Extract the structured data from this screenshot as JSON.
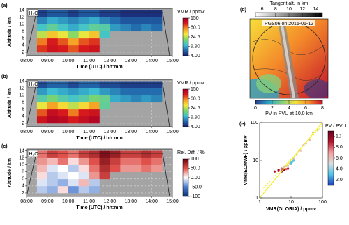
{
  "chart_data": [
    {
      "type": "heatmap",
      "panel_label": "(a)",
      "annotation": "H₂O",
      "xlabel": "Time (UTC) / hh:mm",
      "ylabel": "Altitude / km",
      "xlim": [
        8,
        15
      ],
      "ylim": [
        1,
        14.5
      ],
      "xticks": [
        {
          "value": 8,
          "label": "08:00"
        },
        {
          "value": 9,
          "label": "09:00"
        },
        {
          "value": 10,
          "label": "10:00"
        },
        {
          "value": 11,
          "label": "11:00"
        },
        {
          "value": 12,
          "label": "12:00"
        },
        {
          "value": 13,
          "label": "13:00"
        },
        {
          "value": 14,
          "label": "14:00"
        },
        {
          "value": 15,
          "label": "15:00"
        }
      ],
      "yticks": [
        2,
        4,
        6,
        8,
        10,
        12,
        14
      ],
      "grid": true,
      "x": [
        8.75,
        9.25,
        9.75,
        10.25,
        10.75,
        11.25,
        11.75,
        12.25,
        12.75,
        13.25,
        13.75,
        14.25
      ],
      "y": [
        3,
        5,
        7,
        9,
        11,
        13
      ],
      "z": [
        [
          80,
          100,
          90,
          70,
          90,
          100,
          null,
          null,
          null,
          null,
          null,
          null
        ],
        [
          60,
          90,
          70,
          50,
          70,
          80,
          null,
          null,
          null,
          null,
          null,
          null
        ],
        [
          25,
          40,
          30,
          20,
          30,
          40,
          12,
          null,
          null,
          null,
          null,
          null
        ],
        [
          12,
          15,
          12,
          10,
          12,
          15,
          14,
          9,
          8,
          7,
          8,
          7
        ],
        [
          8,
          10,
          9,
          8,
          9,
          10,
          8,
          7,
          6,
          6,
          6,
          6
        ],
        [
          5,
          6,
          6,
          5,
          6,
          6,
          5,
          5,
          4.5,
          4.5,
          4.5,
          4.5
        ]
      ],
      "colorbar": {
        "title": "VMR / ppmv",
        "lim": [
          4,
          150
        ],
        "log": true,
        "ticks": [
          150,
          {
            "value": 60,
            "label": "60.0"
          },
          24.5,
          {
            "value": 9.9,
            "label": "9.90"
          },
          {
            "value": 4,
            "label": "4.00"
          }
        ],
        "colors": [
          "#1a1f6e",
          "#2166ac",
          "#3ec1d3",
          "#7dd66a",
          "#f5e83a",
          "#f59a23",
          "#d7191c",
          "#a50026"
        ]
      }
    },
    {
      "type": "heatmap",
      "panel_label": "(b)",
      "annotation": "H₂O",
      "xlabel": "Time (UTC) / hh:mm",
      "ylabel": "Altitude / km",
      "xlim": [
        8,
        15
      ],
      "ylim": [
        1,
        14.5
      ],
      "xticks": [
        {
          "value": 8,
          "label": "08:00"
        },
        {
          "value": 9,
          "label": "09:00"
        },
        {
          "value": 10,
          "label": "10:00"
        },
        {
          "value": 11,
          "label": "11:00"
        },
        {
          "value": 12,
          "label": "12:00"
        },
        {
          "value": 13,
          "label": "13:00"
        },
        {
          "value": 14,
          "label": "14:00"
        },
        {
          "value": 15,
          "label": "15:00"
        }
      ],
      "yticks": [
        2,
        4,
        6,
        8,
        10,
        12,
        14
      ],
      "grid": true,
      "x": [
        8.75,
        9.25,
        9.75,
        10.25,
        10.75,
        11.25,
        11.75,
        12.25,
        12.75,
        13.25,
        13.75,
        14.25
      ],
      "y": [
        3,
        5,
        7,
        9,
        11,
        13
      ],
      "z": [
        [
          100,
          130,
          120,
          90,
          110,
          130,
          null,
          null,
          null,
          null,
          null,
          null
        ],
        [
          70,
          110,
          90,
          60,
          90,
          100,
          null,
          null,
          null,
          null,
          null,
          null
        ],
        [
          30,
          50,
          35,
          25,
          35,
          50,
          15,
          null,
          null,
          null,
          null,
          null
        ],
        [
          14,
          18,
          14,
          12,
          14,
          18,
          16,
          10,
          9,
          8,
          9,
          8
        ],
        [
          9,
          11,
          10,
          9,
          10,
          11,
          9,
          8,
          7,
          7,
          7,
          7
        ],
        [
          5.5,
          6.5,
          6.5,
          5.5,
          6.5,
          6.5,
          5.5,
          5.5,
          5,
          5,
          5,
          5
        ]
      ],
      "colorbar": {
        "title": "VMR / ppmv",
        "lim": [
          4,
          150
        ],
        "log": true,
        "ticks": [
          150,
          {
            "value": 60,
            "label": "60.0"
          },
          24.5,
          {
            "value": 9.9,
            "label": "9.90"
          },
          {
            "value": 4,
            "label": "4.00"
          }
        ],
        "colors": [
          "#1a1f6e",
          "#2166ac",
          "#3ec1d3",
          "#7dd66a",
          "#f5e83a",
          "#f59a23",
          "#d7191c",
          "#a50026"
        ]
      }
    },
    {
      "type": "heatmap",
      "panel_label": "(c)",
      "annotation": "H₂O",
      "xlabel": "Time (UTC) / hh:mm",
      "ylabel": "Altitude / km",
      "xlim": [
        8,
        15
      ],
      "ylim": [
        1,
        14.5
      ],
      "xticks": [
        {
          "value": 8,
          "label": "08:00"
        },
        {
          "value": 9,
          "label": "09:00"
        },
        {
          "value": 10,
          "label": "10:00"
        },
        {
          "value": 11,
          "label": "11:00"
        },
        {
          "value": 12,
          "label": "12:00"
        },
        {
          "value": 13,
          "label": "13:00"
        },
        {
          "value": 14,
          "label": "14:00"
        },
        {
          "value": 15,
          "label": "15:00"
        }
      ],
      "yticks": [
        2,
        4,
        6,
        8,
        10,
        12,
        14
      ],
      "grid": true,
      "x": [
        8.75,
        9.25,
        9.75,
        10.25,
        10.75,
        11.25,
        11.75,
        12.25,
        12.75,
        13.25,
        13.75,
        14.25
      ],
      "y": [
        3,
        5,
        7,
        9,
        11,
        13
      ],
      "z": [
        [
          -20,
          -30,
          10,
          -40,
          -20,
          -30,
          null,
          null,
          null,
          null,
          null,
          null
        ],
        [
          -10,
          -20,
          -30,
          -10,
          20,
          -20,
          null,
          null,
          null,
          null,
          null,
          null
        ],
        [
          10,
          -20,
          -10,
          0,
          -10,
          30,
          60,
          null,
          null,
          null,
          null,
          null
        ],
        [
          20,
          -10,
          0,
          -20,
          10,
          40,
          70,
          50,
          30,
          30,
          40,
          30
        ],
        [
          30,
          20,
          40,
          10,
          30,
          50,
          80,
          60,
          40,
          40,
          50,
          40
        ],
        [
          40,
          60,
          50,
          40,
          60,
          70,
          90,
          80,
          60,
          60,
          70,
          60
        ]
      ],
      "colorbar": {
        "title": "Rel. Diff. / %",
        "lim": [
          -100,
          100
        ],
        "log": false,
        "ticks": [
          100,
          {
            "value": 50,
            "label": "50.0"
          },
          {
            "value": 0,
            "label": "0.00"
          },
          {
            "value": -50,
            "label": "-50.0"
          },
          -100
        ],
        "colors": [
          "#08306b",
          "#4a7bd0",
          "#ffffff",
          "#e0504a",
          "#67000d"
        ]
      }
    },
    {
      "type": "map",
      "panel_label": "(d)",
      "title": "PGS06 on 2016-01-12",
      "colorbar_top": {
        "title": "Tangent alt. in km",
        "lim": [
          5,
          15
        ],
        "ticks": [
          6,
          8,
          10,
          12,
          14
        ],
        "colors": [
          "#ffffff",
          "#000000"
        ]
      },
      "colorbar_bottom": {
        "title": "PV in PVU at 10.0 km",
        "lim": [
          0,
          8
        ],
        "ticks": [
          0,
          2,
          4,
          6,
          8
        ],
        "colors": [
          "#2c3b8c",
          "#2aa6c8",
          "#86d07a",
          "#f6e03a",
          "#f48a2a",
          "#c8102e"
        ]
      }
    },
    {
      "type": "scatter",
      "panel_label": "(e)",
      "xlabel": "VMR(GLORIA) / ppmv",
      "ylabel": "VMR(ECMWF) / ppmv",
      "log": true,
      "xlim": [
        1,
        100
      ],
      "ylim": [
        1,
        100
      ],
      "xticks": [
        1,
        10,
        100
      ],
      "yticks": [
        1,
        10,
        100
      ],
      "x": [
        3,
        4,
        5,
        5,
        6,
        6,
        7,
        8,
        8,
        9,
        10,
        11,
        12,
        15,
        20,
        25,
        30,
        40,
        50,
        70,
        4,
        5,
        6,
        7,
        10,
        12
      ],
      "y": [
        5,
        5.5,
        5,
        6,
        5.5,
        6,
        5.8,
        6,
        7,
        8,
        8,
        9,
        11,
        14,
        18,
        25,
        28,
        35,
        55,
        65,
        5.2,
        5.6,
        6.5,
        7,
        9,
        10
      ],
      "pv": [
        9,
        10,
        9,
        8,
        10,
        9,
        8,
        9,
        6,
        6,
        3,
        4,
        6,
        6,
        6,
        6,
        6,
        6,
        6,
        6,
        9,
        8,
        6,
        6,
        3,
        3
      ],
      "colorbar": {
        "title": "PV / PVU",
        "lim": [
          1,
          11
        ],
        "ticks": [
          {
            "value": 2,
            "label": "2.0"
          },
          {
            "value": 4,
            "label": "4.0"
          },
          {
            "value": 6,
            "label": "6.0"
          },
          {
            "value": 8,
            "label": "8.0"
          },
          10
        ],
        "colors": [
          "#1f3bbf",
          "#4fc3e8",
          "#dddddd",
          "#f4a0a0",
          "#b2182b",
          "#67001f"
        ]
      }
    }
  ]
}
